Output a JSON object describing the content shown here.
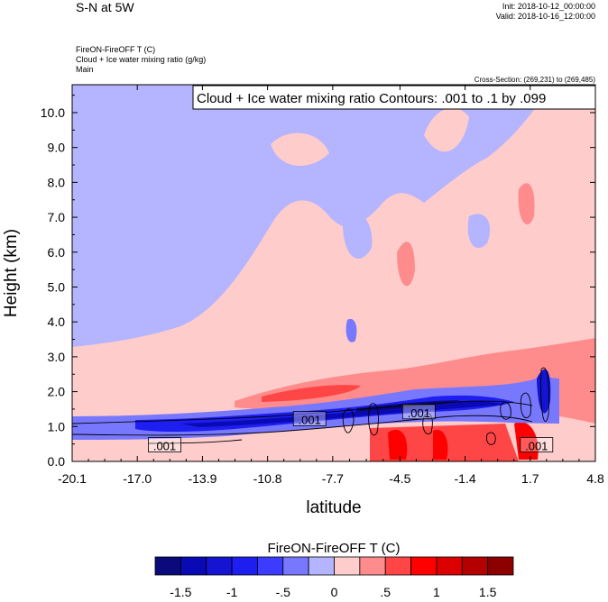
{
  "header": {
    "title": "S-N at 5W",
    "init": "Init: 2018-10-12_00:00:00",
    "valid": "Valid: 2018-10-16_12:00:00",
    "subtitle_lines": [
      "FireON-FireOFF T   (C)",
      "Cloud + Ice water mixing ratio   (g/kg)",
      "Main"
    ],
    "cross_section": "Cross-Section: (269,231) to (269,485)"
  },
  "chart_data": {
    "type": "heatmap",
    "contour_info": "Cloud + Ice water mixing ratio Contours: .001 to .1 by .099",
    "xlabel": "latitude",
    "ylabel": "Height (km)",
    "xlim": [
      -20.1,
      4.8
    ],
    "ylim": [
      0.0,
      10.8
    ],
    "x_ticks": [
      "-20.1",
      "-17.0",
      "-13.9",
      "-10.8",
      "-7.7",
      "-4.5",
      "-1.4",
      "1.7",
      "4.8"
    ],
    "y_ticks": [
      "0.0",
      "1.0",
      "2.0",
      "3.0",
      "4.0",
      "5.0",
      "6.0",
      "7.0",
      "8.0",
      "9.0",
      "10.0"
    ],
    "y_tick_values": [
      0,
      1,
      2,
      3,
      4,
      5,
      6,
      7,
      8,
      9,
      10
    ],
    "contour_labels": [
      {
        "text": ".001",
        "lat": -15.7,
        "height": 0.45
      },
      {
        "text": ".001",
        "lat": -8.8,
        "height": 1.2
      },
      {
        "text": ".001",
        "lat": -3.6,
        "height": 1.4
      },
      {
        "text": ".001",
        "lat": 2.0,
        "height": 0.45
      }
    ],
    "colorbar": {
      "title": "FireON-FireOFF T  (C)",
      "labels": [
        "-1.5",
        "-1",
        "-.5",
        "0",
        ".5",
        "1",
        "1.5"
      ],
      "label_values": [
        -1.5,
        -1,
        -0.5,
        0,
        0.5,
        1,
        1.5
      ],
      "colors": [
        "#0a0a7a",
        "#0a0ab4",
        "#1414d2",
        "#1e1ef0",
        "#3c3cff",
        "#7878ff",
        "#b4b4ff",
        "#ffcccc",
        "#ff8c8c",
        "#ff4646",
        "#ff0000",
        "#dc0000",
        "#b40000",
        "#8c0000"
      ]
    },
    "background_colors": {
      "positive_weak": "#ffcccc",
      "negative_weak": "#b4b4ff"
    }
  }
}
